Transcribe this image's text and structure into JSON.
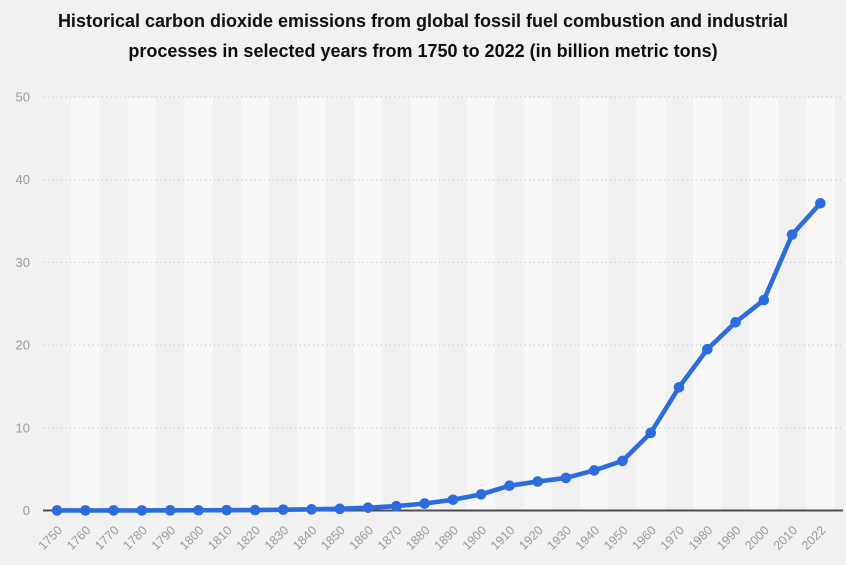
{
  "title": {
    "line1": "Historical carbon dioxide emissions from global fossil fuel combustion and industrial",
    "line2": "processes in selected years from 1750 to 2022 (in billion metric tons)"
  },
  "chart_data": {
    "type": "line",
    "title": "Historical carbon dioxide emissions from global fossil fuel combustion and industrial processes in selected years from 1750 to 2022 (in billion metric tons)",
    "categories": [
      "1750",
      "1760",
      "1770",
      "1780",
      "1790",
      "1800",
      "1810",
      "1820",
      "1830",
      "1840",
      "1850",
      "1860",
      "1870",
      "1880",
      "1890",
      "1900",
      "1910",
      "1920",
      "1930",
      "1940",
      "1950",
      "1960",
      "1970",
      "1980",
      "1990",
      "2000",
      "2010",
      "2022"
    ],
    "values": [
      0.01,
      0.01,
      0.01,
      0.01,
      0.02,
      0.03,
      0.04,
      0.05,
      0.1,
      0.14,
      0.2,
      0.34,
      0.53,
      0.84,
      1.3,
      1.95,
      3.0,
      3.5,
      3.94,
      4.85,
      6.0,
      9.39,
      14.9,
      19.5,
      22.76,
      25.45,
      33.36,
      37.15
    ],
    "xlabel": "",
    "ylabel": "",
    "ylim": [
      0,
      50
    ],
    "yticks": [
      0,
      10,
      20,
      30,
      40,
      50
    ],
    "grid": "horizontal-dotted",
    "legend": "none",
    "marker": "circle"
  },
  "colors": {
    "background": "#f1f1f2",
    "band": "#f8f8f9",
    "gridline": "#c9c9c9",
    "zero_axis": "#4d4d4d",
    "tick_label": "#9a9a9a",
    "title_text": "#0e0e0e",
    "line": "#2d6cdc"
  }
}
